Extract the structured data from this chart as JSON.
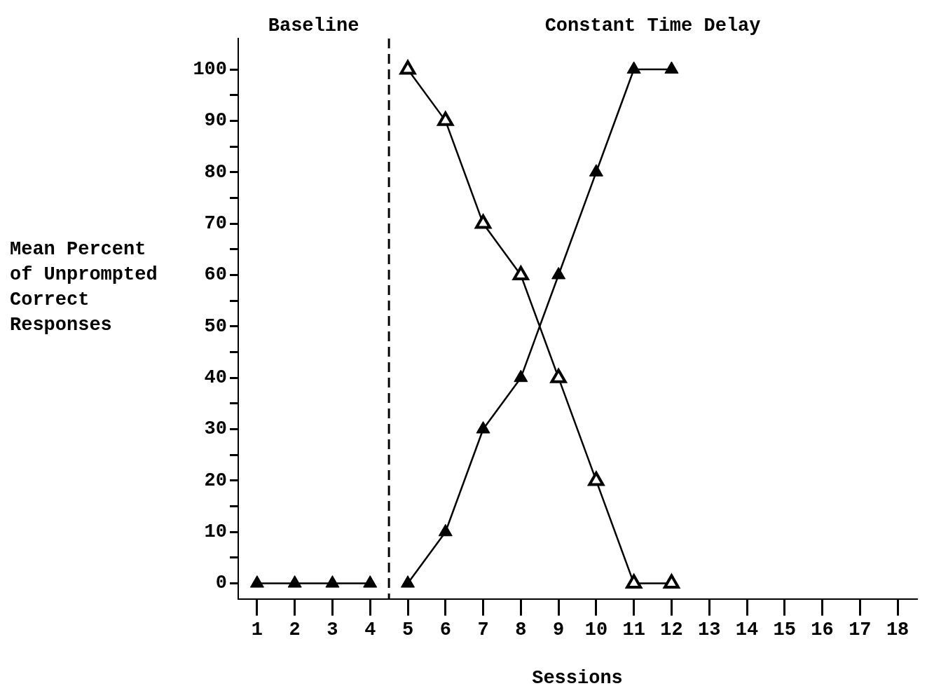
{
  "chart_data": {
    "type": "line",
    "xlabel": "Sessions",
    "ylabel": "Mean Percent of Unprompted Correct Responses",
    "x": [
      1,
      2,
      3,
      4,
      5,
      6,
      7,
      8,
      9,
      10,
      11,
      12
    ],
    "series": [
      {
        "color": "#000000",
        "values": [
          0,
          0,
          0,
          0,
          null,
          null,
          null,
          null,
          null,
          null,
          null,
          null
        ]
      },
      {
        "color": "#000000",
        "values": [
          null,
          null,
          null,
          null,
          0,
          10,
          30,
          40,
          60,
          80,
          100,
          100
        ]
      },
      {
        "color": "#000000",
        "values": [
          null,
          null,
          null,
          null,
          100,
          90,
          70,
          60,
          40,
          20,
          0,
          0
        ]
      }
    ],
    "xlim": [
      0.5,
      18.5
    ],
    "xticks": [
      1,
      2,
      3,
      4,
      5,
      6,
      7,
      8,
      9,
      10,
      11,
      12,
      13,
      14,
      15,
      16,
      17,
      18
    ],
    "ylim": [
      -3,
      106
    ],
    "yticks": [
      0,
      {
        "value": 5,
        "label": null
      },
      10,
      {
        "value": 15,
        "label": null
      },
      20,
      {
        "value": 25,
        "label": null
      },
      30,
      {
        "value": 35,
        "label": null
      },
      40,
      {
        "value": 45,
        "label": null
      },
      50,
      {
        "value": 55,
        "label": null
      },
      60,
      {
        "value": 65,
        "label": null
      },
      70,
      {
        "value": 75,
        "label": null
      },
      80,
      {
        "value": 85,
        "label": null
      },
      90,
      {
        "value": 95,
        "label": null
      },
      100
    ],
    "ref_lines": [
      {
        "axis": "x",
        "value": 4.5,
        "color": "#000000",
        "line_style": "dashed"
      }
    ],
    "annotations": [
      "Baseline",
      "Constant Time Delay"
    ],
    "marker": "triangle",
    "line_style": "solid",
    "grid": false,
    "legend": false
  }
}
